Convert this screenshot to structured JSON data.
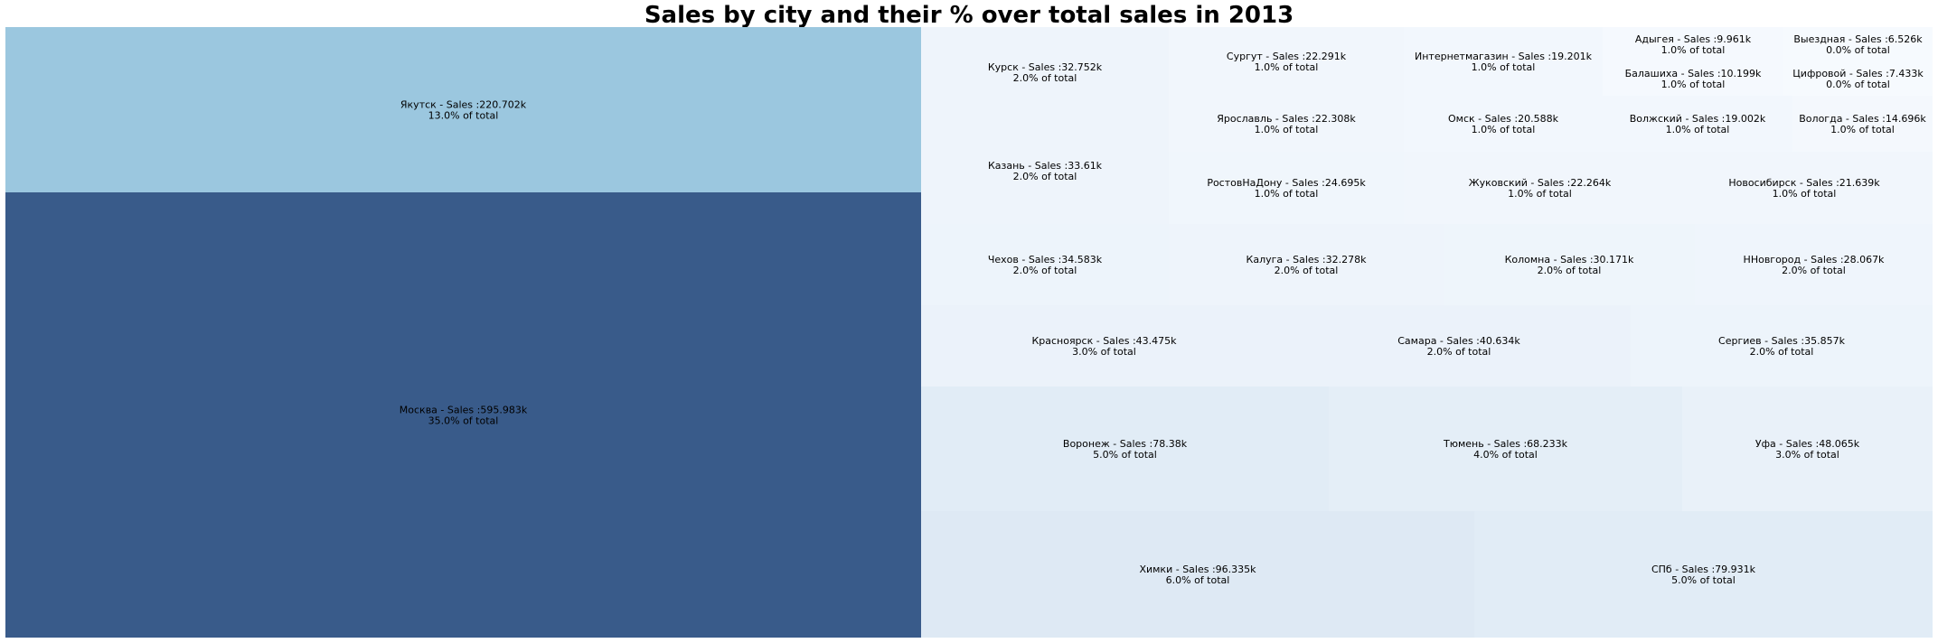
{
  "chart_data": {
    "type": "treemap",
    "title": "Sales by city and their % over total sales in 2013",
    "unit": "k",
    "items": [
      {
        "label": "Москва - Sales :595.983k",
        "pct": "35.0% of total",
        "value": 595.983,
        "color": "#395b8a"
      },
      {
        "label": "Якутск - Sales :220.702k",
        "pct": "13.0% of total",
        "value": 220.702,
        "color": "#9bc7df"
      },
      {
        "label": "Химки - Sales :96.335k",
        "pct": "6.0% of total",
        "value": 96.335,
        "color": "#dee9f4"
      },
      {
        "label": "СПб - Sales :79.931k",
        "pct": "5.0% of total",
        "value": 79.931,
        "color": "#e1ecf6"
      },
      {
        "label": "Воронеж - Sales :78.38k",
        "pct": "5.0% of total",
        "value": 78.38,
        "color": "#e1ecf6"
      },
      {
        "label": "Тюмень - Sales :68.233k",
        "pct": "4.0% of total",
        "value": 68.233,
        "color": "#e4eef7"
      },
      {
        "label": "Уфа - Sales :48.065k",
        "pct": "3.0% of total",
        "value": 48.065,
        "color": "#e9f1f9"
      },
      {
        "label": "Красноярск - Sales :43.475k",
        "pct": "3.0% of total",
        "value": 43.475,
        "color": "#ebf2fa"
      },
      {
        "label": "Самара - Sales :40.634k",
        "pct": "2.0% of total",
        "value": 40.634,
        "color": "#ebf2fa"
      },
      {
        "label": "Сергиев - Sales :35.857k",
        "pct": "2.0% of total",
        "value": 35.857,
        "color": "#edf4fb"
      },
      {
        "label": "Чехов - Sales :34.583k",
        "pct": "2.0% of total",
        "value": 34.583,
        "color": "#edf4fb"
      },
      {
        "label": "Калуга - Sales :32.278k",
        "pct": "2.0% of total",
        "value": 32.278,
        "color": "#eef4fb"
      },
      {
        "label": "Коломна - Sales :30.171k",
        "pct": "2.0% of total",
        "value": 30.171,
        "color": "#eef5fb"
      },
      {
        "label": "ННовгород - Sales :28.067k",
        "pct": "2.0% of total",
        "value": 28.067,
        "color": "#eff5fc"
      },
      {
        "label": "Казань - Sales :33.61k",
        "pct": "2.0% of total",
        "value": 33.61,
        "color": "#eef4fb"
      },
      {
        "label": "Курск - Sales :32.752k",
        "pct": "2.0% of total",
        "value": 32.752,
        "color": "#eef4fb"
      },
      {
        "label": "РостовНаДону - Sales :24.695k",
        "pct": "1.0% of total",
        "value": 24.695,
        "color": "#f0f6fc"
      },
      {
        "label": "Жуковский - Sales :22.264k",
        "pct": "1.0% of total",
        "value": 22.264,
        "color": "#f1f6fc"
      },
      {
        "label": "Новосибирск - Sales :21.639k",
        "pct": "1.0% of total",
        "value": 21.639,
        "color": "#f1f6fc"
      },
      {
        "label": "Ярославль - Sales :22.308k",
        "pct": "1.0% of total",
        "value": 22.308,
        "color": "#f1f6fc"
      },
      {
        "label": "Сургут - Sales :22.291k",
        "pct": "1.0% of total",
        "value": 22.291,
        "color": "#f1f6fc"
      },
      {
        "label": "Омск - Sales :20.588k",
        "pct": "1.0% of total",
        "value": 20.588,
        "color": "#f2f7fd"
      },
      {
        "label": "Интернетмагазин - Sales :19.201k",
        "pct": "1.0% of total",
        "value": 19.201,
        "color": "#f2f7fd"
      },
      {
        "label": "Волжский - Sales :19.002k",
        "pct": "1.0% of total",
        "value": 19.002,
        "color": "#f2f7fd"
      },
      {
        "label": "Вологда - Sales :14.696k",
        "pct": "1.0% of total",
        "value": 14.696,
        "color": "#f4f8fd"
      },
      {
        "label": "Адыгея - Sales :9.961k",
        "pct": "1.0% of total",
        "value": 9.961,
        "color": "#f5f9fe"
      },
      {
        "label": "Балашиха - Sales :10.199k",
        "pct": "1.0% of total",
        "value": 10.199,
        "color": "#f5f9fe"
      },
      {
        "label": "Выездная - Sales :6.526k",
        "pct": "0.0% of total",
        "value": 6.526,
        "color": "#f6fafe"
      },
      {
        "label": "Цифровой - Sales :7.433k",
        "pct": "0.0% of total",
        "value": 7.433,
        "color": "#f6fafe"
      }
    ]
  }
}
